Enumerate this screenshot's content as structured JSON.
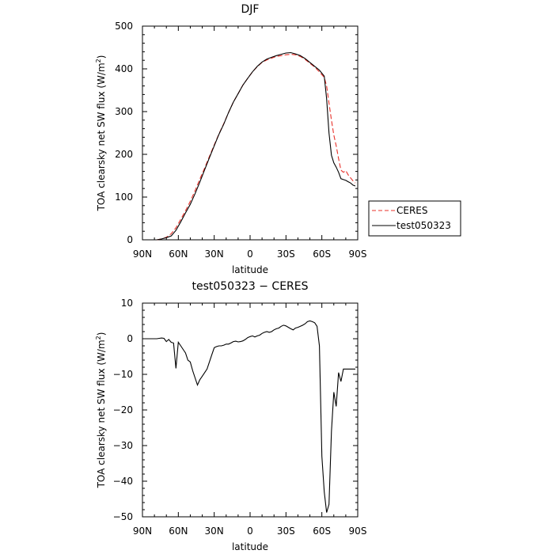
{
  "colors": {
    "ceres": "#e8312a",
    "test": "#000000",
    "axis": "#000000"
  },
  "chart_data": [
    {
      "type": "line",
      "title": "DJF",
      "xlabel": "latitude",
      "ylabel": "TOA clearsky net SW flux (W/m",
      "ylabel_sup": "2",
      "ylabel_close": ")",
      "xlim": [
        90,
        -90
      ],
      "ylim": [
        0,
        500
      ],
      "x_ticks": [
        90,
        60,
        30,
        0,
        -30,
        -60,
        -90
      ],
      "x_tick_labels": [
        "90N",
        "60N",
        "30N",
        "0",
        "30S",
        "60S",
        "90S"
      ],
      "y_ticks": [
        0,
        100,
        200,
        300,
        400,
        500
      ],
      "y_tick_labels": [
        "0",
        "100",
        "200",
        "300",
        "400",
        "500"
      ],
      "grid": false,
      "legend_position": "right, outside plot",
      "series": [
        {
          "name": "CERES",
          "style": "dashed",
          "x": [
            78,
            74,
            70,
            66,
            62,
            58,
            54,
            50,
            46,
            42,
            38,
            34,
            30,
            26,
            22,
            18,
            14,
            10,
            6,
            2,
            -2,
            -6,
            -10,
            -14,
            -18,
            -22,
            -26,
            -30,
            -34,
            -38,
            -42,
            -46,
            -50,
            -54,
            -58,
            -62,
            -64,
            -66,
            -68,
            -70,
            -72,
            -74,
            -76,
            -78,
            -80,
            -82,
            -84,
            -86,
            -88
          ],
          "y": [
            0,
            2,
            6,
            14,
            28,
            48,
            68,
            90,
            115,
            142,
            168,
            195,
            222,
            248,
            272,
            298,
            322,
            342,
            362,
            378,
            393,
            405,
            415,
            421,
            425,
            429,
            431,
            433,
            434,
            433,
            429,
            422,
            413,
            404,
            393,
            380,
            360,
            320,
            280,
            245,
            220,
            190,
            163,
            158,
            162,
            152,
            145,
            138,
            133
          ]
        },
        {
          "name": "test050323",
          "style": "solid",
          "x": [
            78,
            74,
            70,
            66,
            62,
            58,
            54,
            50,
            46,
            42,
            38,
            34,
            30,
            26,
            22,
            18,
            14,
            10,
            6,
            2,
            -2,
            -6,
            -10,
            -14,
            -18,
            -22,
            -26,
            -30,
            -34,
            -38,
            -42,
            -46,
            -50,
            -54,
            -58,
            -62,
            -64,
            -66,
            -68,
            -70,
            -72,
            -74,
            -76,
            -78,
            -80,
            -82,
            -84,
            -86,
            -88
          ],
          "y": [
            0,
            2,
            5,
            9,
            22,
            42,
            63,
            83,
            108,
            135,
            164,
            192,
            220,
            247,
            271,
            298,
            322,
            342,
            362,
            378,
            393,
            406,
            416,
            423,
            427,
            431,
            434,
            437,
            438,
            435,
            431,
            424,
            415,
            406,
            397,
            383,
            330,
            250,
            198,
            180,
            170,
            158,
            143,
            141,
            139,
            136,
            133,
            128,
            126
          ]
        }
      ]
    },
    {
      "type": "line",
      "title": "test050323 − CERES",
      "xlabel": "latitude",
      "ylabel": "TOA clearsky net SW flux (W/m",
      "ylabel_sup": "2",
      "ylabel_close": ")",
      "xlim": [
        90,
        -90
      ],
      "ylim": [
        -50,
        10
      ],
      "x_ticks": [
        90,
        60,
        30,
        0,
        -30,
        -60,
        -90
      ],
      "x_tick_labels": [
        "90N",
        "60N",
        "30N",
        "0",
        "30S",
        "60S",
        "90S"
      ],
      "y_ticks": [
        -50,
        -40,
        -30,
        -20,
        -10,
        0,
        10
      ],
      "y_tick_labels": [
        "−50",
        "−40",
        "−30",
        "−20",
        "−10",
        "0",
        "10"
      ],
      "grid": false,
      "series": [
        {
          "name": "",
          "style": "solid",
          "x": [
            90,
            78,
            76,
            74,
            72,
            70,
            68,
            66,
            64,
            62,
            60,
            58,
            56,
            54,
            52,
            50,
            48,
            46,
            44,
            42,
            40,
            38,
            36,
            34,
            32,
            30,
            28,
            26,
            24,
            22,
            20,
            18,
            16,
            14,
            12,
            10,
            8,
            6,
            4,
            2,
            0,
            -2,
            -4,
            -6,
            -8,
            -10,
            -12,
            -14,
            -16,
            -18,
            -20,
            -22,
            -24,
            -26,
            -28,
            -30,
            -32,
            -34,
            -36,
            -38,
            -40,
            -42,
            -44,
            -46,
            -48,
            -50,
            -52,
            -54,
            -56,
            -58,
            -60,
            -62,
            -64,
            -66,
            -68,
            -70,
            -72,
            -74,
            -76,
            -78,
            -80,
            -82,
            -84,
            -86,
            -88
          ],
          "y": [
            0,
            0,
            0.1,
            0.2,
            0.1,
            -0.8,
            -0.2,
            -1.0,
            -1.2,
            -8.3,
            -1.0,
            -2.0,
            -3.0,
            -4.0,
            -6.0,
            -6.5,
            -9.0,
            -11.0,
            -13.0,
            -11.5,
            -10.5,
            -9.5,
            -8.5,
            -6.5,
            -4.5,
            -2.5,
            -2.2,
            -2.0,
            -2.0,
            -1.8,
            -1.5,
            -1.5,
            -1.2,
            -0.8,
            -0.7,
            -0.9,
            -0.8,
            -0.6,
            -0.2,
            0.3,
            0.6,
            0.8,
            0.5,
            0.8,
            1.0,
            1.5,
            1.8,
            2.0,
            1.8,
            2.0,
            2.5,
            2.8,
            3.0,
            3.5,
            3.8,
            3.6,
            3.2,
            2.8,
            2.5,
            3.0,
            3.2,
            3.5,
            3.8,
            4.2,
            4.8,
            5.0,
            4.8,
            4.5,
            3.5,
            -2.0,
            -33.0,
            -43.0,
            -48.8,
            -46.5,
            -26.0,
            -15.0,
            -19.0,
            -9.5,
            -12.0,
            -8.5,
            -8.5,
            -8.5,
            -8.5,
            -8.5,
            -8.5
          ]
        }
      ]
    }
  ]
}
